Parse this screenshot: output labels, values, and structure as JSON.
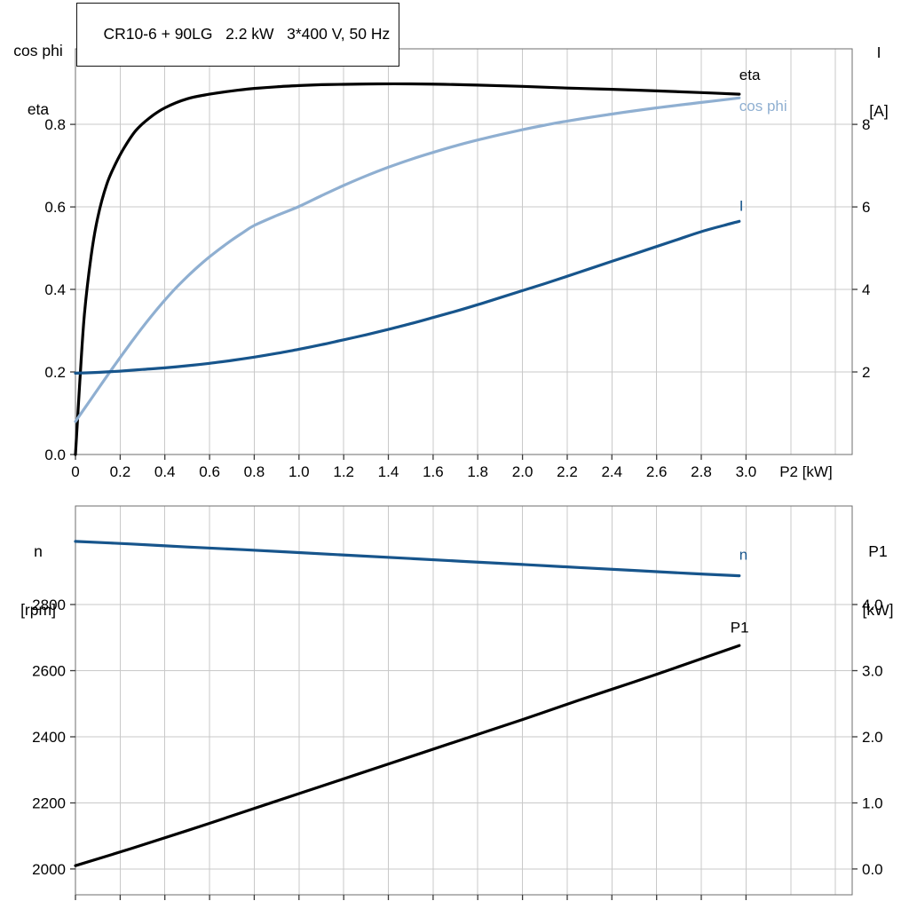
{
  "colors": {
    "curve_black": "#000000",
    "curve_dark_blue": "#17558c",
    "curve_light_blue": "#8fafd1",
    "grid": "#c9c9c9",
    "frame": "#6e6e6e",
    "tick": "#3a3a3a",
    "text": "#000000",
    "background": "#ffffff"
  },
  "chart_data": [
    {
      "type": "line",
      "panel": "top",
      "title": "CR10-6 + 90LG   2.2 kW   3*400 V, 50 Hz",
      "axes": {
        "x": {
          "min": 0,
          "max": 3.475,
          "grid_ticks": [
            0.2,
            0.4,
            0.6,
            0.8,
            1.0,
            1.2,
            1.4,
            1.6,
            1.8,
            2.0,
            2.2,
            2.4,
            2.6,
            2.8,
            3.0,
            3.2,
            3.4
          ],
          "ticks": [
            0,
            0.2,
            0.4,
            0.6,
            0.8,
            1.0,
            1.2,
            1.4,
            1.6,
            1.8,
            2.0,
            2.2,
            2.4,
            2.6,
            2.8,
            3.0
          ],
          "tick_labels": [
            "0",
            "0.2",
            "0.4",
            "0.6",
            "0.8",
            "1.0",
            "1.2",
            "1.4",
            "1.6",
            "1.8",
            "2.0",
            "2.2",
            "2.4",
            "2.6",
            "2.8",
            "3.0"
          ],
          "show_tick_labels": true,
          "label": "P2 [kW]",
          "label_x": 3.15
        },
        "y_left": {
          "title_lines": [
            "cos phi",
            "eta"
          ],
          "min": 0,
          "max": 0.983,
          "ticks": [
            0,
            0.2,
            0.4,
            0.6,
            0.8
          ],
          "tick_labels": [
            "0.0",
            "0.2",
            "0.4",
            "0.6",
            "0.8"
          ],
          "grid_ticks": [
            0.2,
            0.4,
            0.6,
            0.8
          ]
        },
        "y_right": {
          "title_lines": [
            "I",
            "[A]"
          ],
          "min": 0,
          "max": 9.83,
          "ticks": [
            2,
            4,
            6,
            8
          ],
          "tick_labels": [
            "2",
            "4",
            "6",
            "8"
          ]
        }
      },
      "series": [
        {
          "name": "eta",
          "axis": "left",
          "color": "curve_black",
          "points": [
            [
              0,
              0
            ],
            [
              0.02,
              0.18
            ],
            [
              0.04,
              0.34
            ],
            [
              0.07,
              0.48
            ],
            [
              0.1,
              0.575
            ],
            [
              0.14,
              0.655
            ],
            [
              0.18,
              0.705
            ],
            [
              0.22,
              0.745
            ],
            [
              0.27,
              0.785
            ],
            [
              0.33,
              0.815
            ],
            [
              0.4,
              0.84
            ],
            [
              0.5,
              0.862
            ],
            [
              0.6,
              0.873
            ],
            [
              0.7,
              0.881
            ],
            [
              0.8,
              0.887
            ],
            [
              0.9,
              0.891
            ],
            [
              1.0,
              0.894
            ],
            [
              1.1,
              0.896
            ],
            [
              1.2,
              0.897
            ],
            [
              1.35,
              0.898
            ],
            [
              1.5,
              0.898
            ],
            [
              1.65,
              0.897
            ],
            [
              1.8,
              0.895
            ],
            [
              2.0,
              0.892
            ],
            [
              2.2,
              0.888
            ],
            [
              2.4,
              0.885
            ],
            [
              2.6,
              0.881
            ],
            [
              2.8,
              0.877
            ],
            [
              2.97,
              0.873
            ]
          ],
          "label": {
            "text": "eta",
            "x": 2.97,
            "y": 0.921
          }
        },
        {
          "name": "cos phi",
          "axis": "left",
          "color": "curve_light_blue",
          "points": [
            [
              0,
              0.08
            ],
            [
              0.05,
              0.119
            ],
            [
              0.1,
              0.158
            ],
            [
              0.15,
              0.197
            ],
            [
              0.2,
              0.235
            ],
            [
              0.25,
              0.272
            ],
            [
              0.3,
              0.308
            ],
            [
              0.35,
              0.342
            ],
            [
              0.4,
              0.374
            ],
            [
              0.45,
              0.404
            ],
            [
              0.5,
              0.431
            ],
            [
              0.55,
              0.456
            ],
            [
              0.6,
              0.479
            ],
            [
              0.65,
              0.5
            ],
            [
              0.7,
              0.52
            ],
            [
              0.75,
              0.538
            ],
            [
              0.8,
              0.555
            ],
            [
              0.9,
              0.579
            ],
            [
              1.0,
              0.601
            ],
            [
              1.1,
              0.627
            ],
            [
              1.2,
              0.652
            ],
            [
              1.3,
              0.675
            ],
            [
              1.4,
              0.696
            ],
            [
              1.5,
              0.715
            ],
            [
              1.6,
              0.732
            ],
            [
              1.7,
              0.748
            ],
            [
              1.8,
              0.762
            ],
            [
              1.9,
              0.775
            ],
            [
              2.0,
              0.787
            ],
            [
              2.1,
              0.798
            ],
            [
              2.2,
              0.808
            ],
            [
              2.4,
              0.825
            ],
            [
              2.6,
              0.84
            ],
            [
              2.8,
              0.853
            ],
            [
              2.97,
              0.864
            ]
          ],
          "label": {
            "text": "cos phi",
            "x": 2.97,
            "y": 0.845
          }
        },
        {
          "name": "I",
          "axis": "right",
          "color": "curve_dark_blue",
          "points": [
            [
              0,
              1.97
            ],
            [
              0.1,
              1.99
            ],
            [
              0.2,
              2.02
            ],
            [
              0.3,
              2.06
            ],
            [
              0.4,
              2.1
            ],
            [
              0.5,
              2.15
            ],
            [
              0.6,
              2.21
            ],
            [
              0.7,
              2.28
            ],
            [
              0.8,
              2.36
            ],
            [
              0.9,
              2.45
            ],
            [
              1.0,
              2.55
            ],
            [
              1.1,
              2.66
            ],
            [
              1.2,
              2.78
            ],
            [
              1.3,
              2.9
            ],
            [
              1.4,
              3.03
            ],
            [
              1.5,
              3.17
            ],
            [
              1.6,
              3.32
            ],
            [
              1.7,
              3.47
            ],
            [
              1.8,
              3.63
            ],
            [
              1.9,
              3.8
            ],
            [
              2.0,
              3.97
            ],
            [
              2.1,
              4.14
            ],
            [
              2.2,
              4.32
            ],
            [
              2.3,
              4.5
            ],
            [
              2.4,
              4.68
            ],
            [
              2.5,
              4.86
            ],
            [
              2.6,
              5.04
            ],
            [
              2.7,
              5.22
            ],
            [
              2.8,
              5.4
            ],
            [
              2.9,
              5.55
            ],
            [
              2.97,
              5.65
            ]
          ],
          "label": {
            "text": "I",
            "x": 2.97,
            "y": 6.03
          }
        }
      ]
    },
    {
      "type": "line",
      "panel": "bottom",
      "title": "",
      "axes": {
        "x": {
          "min": 0,
          "max": 3.475,
          "grid_ticks": [
            0.2,
            0.4,
            0.6,
            0.8,
            1.0,
            1.2,
            1.4,
            1.6,
            1.8,
            2.0,
            2.2,
            2.4,
            2.6,
            2.8,
            3.0,
            3.2,
            3.4
          ],
          "ticks": [
            0,
            0.2,
            0.4,
            0.6,
            0.8,
            1.0,
            1.2,
            1.4,
            1.6,
            1.8,
            2.0,
            2.2,
            2.4,
            2.6,
            2.8,
            3.0
          ],
          "tick_labels": [],
          "show_tick_labels": false,
          "label": "",
          "label_x": 0
        },
        "y_left": {
          "title_lines": [
            "n",
            "[rpm]"
          ],
          "min": 1922,
          "max": 3098,
          "ticks": [
            2000,
            2200,
            2400,
            2600,
            2800
          ],
          "tick_labels": [
            "2000",
            "2200",
            "2400",
            "2600",
            "2800"
          ],
          "grid_ticks": [
            2000,
            2200,
            2400,
            2600,
            2800
          ]
        },
        "y_right": {
          "title_lines": [
            "P1",
            "[kW]"
          ],
          "min": -0.39,
          "max": 5.49,
          "ticks": [
            0,
            1,
            2,
            3,
            4
          ],
          "tick_labels": [
            "0.0",
            "1.0",
            "2.0",
            "3.0",
            "4.0"
          ]
        }
      },
      "series": [
        {
          "name": "n",
          "axis": "left",
          "color": "curve_dark_blue",
          "points": [
            [
              0,
              2991
            ],
            [
              0.25,
              2983
            ],
            [
              0.5,
              2974
            ],
            [
              0.75,
              2966
            ],
            [
              1.0,
              2957
            ],
            [
              1.25,
              2948
            ],
            [
              1.5,
              2939
            ],
            [
              1.75,
              2930
            ],
            [
              2.0,
              2921
            ],
            [
              2.25,
              2912
            ],
            [
              2.5,
              2903
            ],
            [
              2.75,
              2894
            ],
            [
              2.97,
              2887
            ]
          ],
          "label": {
            "text": "n",
            "x": 2.97,
            "y": 2952
          }
        },
        {
          "name": "P1",
          "axis": "right",
          "color": "curve_black",
          "points": [
            [
              0,
              0.05
            ],
            [
              0.25,
              0.31
            ],
            [
              0.5,
              0.58
            ],
            [
              0.75,
              0.86
            ],
            [
              1.0,
              1.14
            ],
            [
              1.25,
              1.42
            ],
            [
              1.5,
              1.7
            ],
            [
              1.75,
              1.98
            ],
            [
              2.0,
              2.26
            ],
            [
              2.25,
              2.55
            ],
            [
              2.5,
              2.83
            ],
            [
              2.75,
              3.12
            ],
            [
              2.97,
              3.38
            ]
          ],
          "label": {
            "text": "P1",
            "x": 2.93,
            "y": 3.66
          }
        }
      ]
    }
  ]
}
